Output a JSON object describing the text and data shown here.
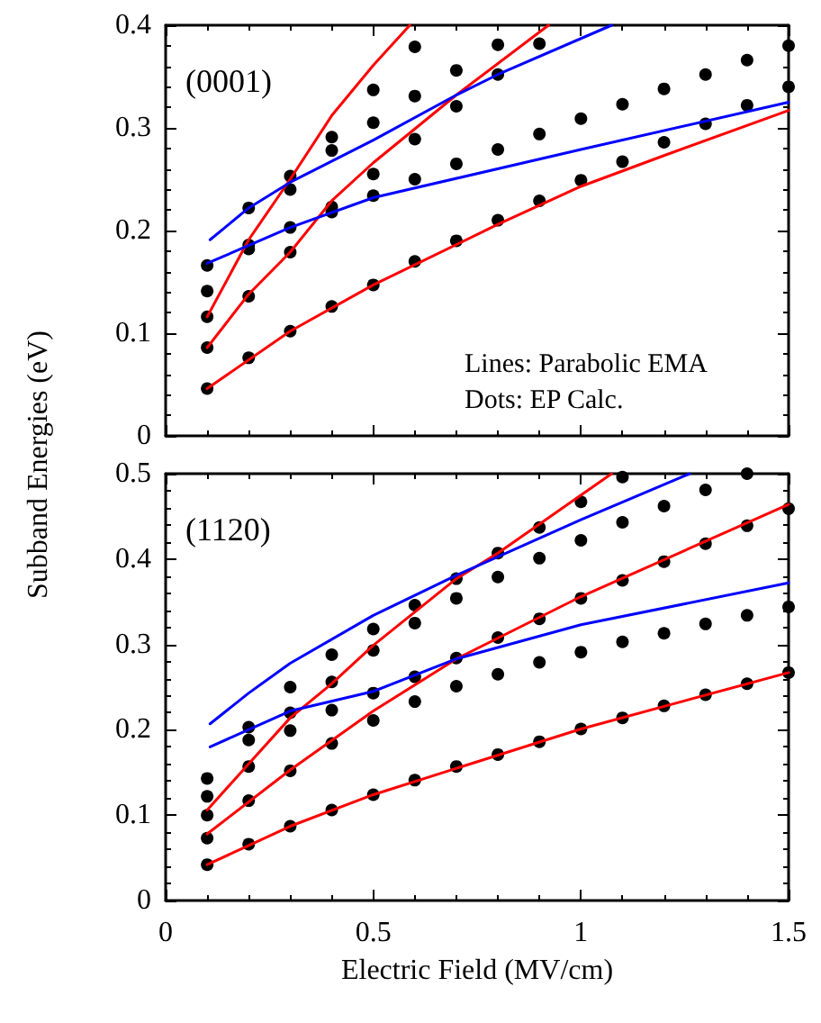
{
  "chart_data": [
    {
      "type": "line",
      "ylabel": "Subband Energies (eV)",
      "xlim": [
        0,
        1.5
      ],
      "xticks": [
        0,
        0.5,
        1,
        1.5
      ],
      "ylim": [
        0,
        0.4
      ],
      "yticks": [
        0,
        0.1,
        0.2,
        0.3,
        0.4
      ],
      "tick_labels": "y",
      "annotations": [
        "(0001)",
        "Lines: Parabolic EMA",
        "Dots: EP Calc."
      ],
      "series": [
        {
          "color": "#ff0000",
          "x": [
            0.1,
            0.2,
            0.3,
            0.4,
            0.5,
            0.588
          ],
          "values": [
            0.116,
            0.191,
            0.25,
            0.312,
            0.361,
            0.4
          ]
        },
        {
          "color": "#ff0000",
          "x": [
            0.1,
            0.2,
            0.3,
            0.4,
            0.5,
            0.7,
            0.922
          ],
          "values": [
            0.086,
            0.138,
            0.179,
            0.229,
            0.266,
            0.332,
            0.4
          ]
        },
        {
          "color": "#ff0000",
          "x": [
            0.1,
            0.3,
            0.5,
            0.8,
            1.0,
            1.2,
            1.5
          ],
          "values": [
            0.046,
            0.102,
            0.147,
            0.206,
            0.243,
            0.273,
            0.317
          ]
        },
        {
          "color": "#0000ff",
          "x": [
            0.107,
            0.2,
            0.3,
            0.5,
            0.7,
            0.8,
            1.074
          ],
          "values": [
            0.191,
            0.222,
            0.247,
            0.288,
            0.332,
            0.352,
            0.4
          ]
        },
        {
          "color": "#0000ff",
          "x": [
            0.1,
            0.3,
            0.5,
            1.0,
            1.5
          ],
          "values": [
            0.168,
            0.203,
            0.232,
            0.279,
            0.325
          ]
        },
        {
          "type": "scatter",
          "marker": "circle",
          "color": "#000000",
          "x": [
            0.1,
            0.1,
            0.1,
            0.1,
            0.1,
            0.2,
            0.2,
            0.2,
            0.2,
            0.2,
            0.3,
            0.3,
            0.3,
            0.3,
            0.3,
            0.4,
            0.4,
            0.4,
            0.4,
            0.4,
            0.5,
            0.5,
            0.5,
            0.5,
            0.5,
            0.6,
            0.6,
            0.6,
            0.6,
            0.6,
            0.7,
            0.7,
            0.7,
            0.7,
            0.8,
            0.8,
            0.8,
            0.8,
            0.9,
            0.9,
            0.9,
            1.0,
            1.0,
            1.1,
            1.1,
            1.2,
            1.2,
            1.3,
            1.3,
            1.4,
            1.4,
            1.5,
            1.5
          ],
          "values": [
            0.166,
            0.141,
            0.116,
            0.086,
            0.046,
            0.222,
            0.186,
            0.182,
            0.136,
            0.076,
            0.253,
            0.24,
            0.203,
            0.179,
            0.102,
            0.291,
            0.278,
            0.223,
            0.218,
            0.126,
            0.337,
            0.305,
            0.255,
            0.234,
            0.147,
            0.379,
            0.331,
            0.289,
            0.25,
            0.17,
            0.356,
            0.321,
            0.265,
            0.19,
            0.381,
            0.352,
            0.279,
            0.21,
            0.382,
            0.294,
            0.229,
            0.309,
            0.249,
            0.323,
            0.267,
            0.338,
            0.286,
            0.352,
            0.304,
            0.366,
            0.322,
            0.38,
            0.34
          ]
        }
      ]
    },
    {
      "type": "line",
      "xlabel": "Electric Field (MV/cm)",
      "xlim": [
        0,
        1.5
      ],
      "xticks": [
        0,
        0.5,
        1,
        1.5
      ],
      "ylim": [
        0,
        0.5
      ],
      "yticks": [
        0,
        0.1,
        0.2,
        0.3,
        0.4,
        0.5
      ],
      "annotations": [
        "(1120)"
      ],
      "series": [
        {
          "color": "#ff0000",
          "x": [
            0.1,
            0.2,
            0.3,
            0.4,
            0.5,
            0.7,
            0.8,
            1.074
          ],
          "values": [
            0.106,
            0.16,
            0.214,
            0.254,
            0.299,
            0.377,
            0.407,
            0.5
          ]
        },
        {
          "color": "#ff0000",
          "x": [
            0.1,
            0.3,
            0.5,
            0.7,
            1.0,
            1.5
          ],
          "values": [
            0.078,
            0.153,
            0.222,
            0.283,
            0.356,
            0.464
          ]
        },
        {
          "color": "#ff0000",
          "x": [
            0.1,
            0.3,
            0.5,
            1.0,
            1.5
          ],
          "values": [
            0.042,
            0.087,
            0.124,
            0.201,
            0.267
          ]
        },
        {
          "color": "#0000ff",
          "x": [
            0.107,
            0.2,
            0.3,
            0.5,
            0.7,
            1.0,
            1.262
          ],
          "values": [
            0.207,
            0.243,
            0.278,
            0.334,
            0.381,
            0.446,
            0.5
          ]
        },
        {
          "color": "#0000ff",
          "x": [
            0.107,
            0.3,
            0.5,
            0.7,
            1.0,
            1.5
          ],
          "values": [
            0.18,
            0.222,
            0.245,
            0.283,
            0.323,
            0.372
          ]
        },
        {
          "type": "scatter",
          "marker": "circle",
          "color": "#000000",
          "x": [
            0.1,
            0.1,
            0.1,
            0.1,
            0.1,
            0.2,
            0.2,
            0.2,
            0.2,
            0.2,
            0.3,
            0.3,
            0.3,
            0.3,
            0.3,
            0.4,
            0.4,
            0.4,
            0.4,
            0.4,
            0.5,
            0.5,
            0.5,
            0.5,
            0.5,
            0.6,
            0.6,
            0.6,
            0.6,
            0.6,
            0.7,
            0.7,
            0.7,
            0.7,
            0.7,
            0.8,
            0.8,
            0.8,
            0.8,
            0.8,
            0.9,
            0.9,
            0.9,
            0.9,
            0.9,
            1.0,
            1.0,
            1.0,
            1.0,
            1.0,
            1.1,
            1.1,
            1.1,
            1.1,
            1.1,
            1.2,
            1.2,
            1.2,
            1.2,
            1.3,
            1.3,
            1.3,
            1.3,
            1.4,
            1.4,
            1.4,
            1.4,
            1.5,
            1.5,
            1.5
          ],
          "values": [
            0.143,
            0.122,
            0.1,
            0.073,
            0.042,
            0.203,
            0.188,
            0.157,
            0.117,
            0.066,
            0.25,
            0.22,
            0.199,
            0.152,
            0.087,
            0.288,
            0.256,
            0.223,
            0.184,
            0.106,
            0.318,
            0.293,
            0.243,
            0.211,
            0.124,
            0.346,
            0.325,
            0.262,
            0.233,
            0.141,
            0.377,
            0.354,
            0.284,
            0.251,
            0.157,
            0.407,
            0.379,
            0.308,
            0.265,
            0.171,
            0.437,
            0.401,
            0.33,
            0.279,
            0.186,
            0.467,
            0.422,
            0.354,
            0.291,
            0.201,
            0.496,
            0.443,
            0.375,
            0.303,
            0.214,
            0.462,
            0.397,
            0.313,
            0.228,
            0.481,
            0.418,
            0.324,
            0.241,
            0.5,
            0.439,
            0.334,
            0.254,
            0.459,
            0.344,
            0.267
          ]
        }
      ]
    }
  ]
}
